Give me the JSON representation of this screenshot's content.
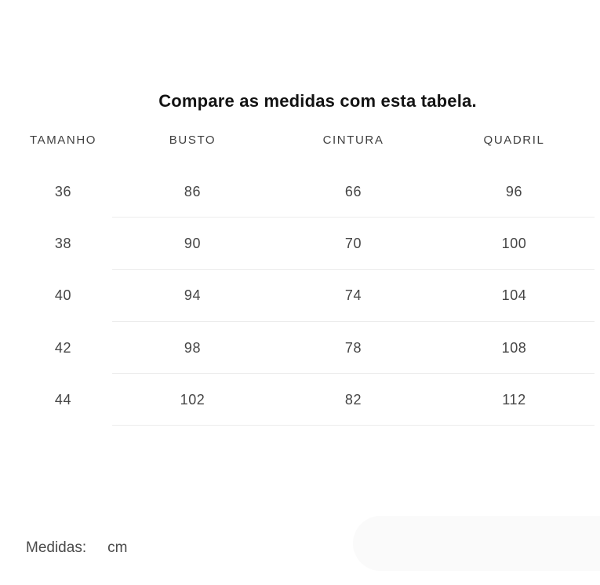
{
  "page": {
    "title": "Compare as medidas com esta tabela."
  },
  "table": {
    "headers": [
      "TAMANHO",
      "BUSTO",
      "CINTURA",
      "QUADRIL"
    ],
    "rows": [
      [
        "36",
        "86",
        "66",
        "96"
      ],
      [
        "38",
        "90",
        "70",
        "100"
      ],
      [
        "40",
        "94",
        "74",
        "104"
      ],
      [
        "42",
        "98",
        "78",
        "108"
      ],
      [
        "44",
        "102",
        "82",
        "112"
      ]
    ]
  },
  "footer": {
    "label": "Medidas:",
    "unit": "cm"
  },
  "colors": {
    "title_text": "#131313",
    "header_text": "#3f3f3f",
    "cell_text": "#454545",
    "footer_text": "#4a4a4a",
    "divider": "#ececec",
    "pill_background": "#fafafa"
  }
}
